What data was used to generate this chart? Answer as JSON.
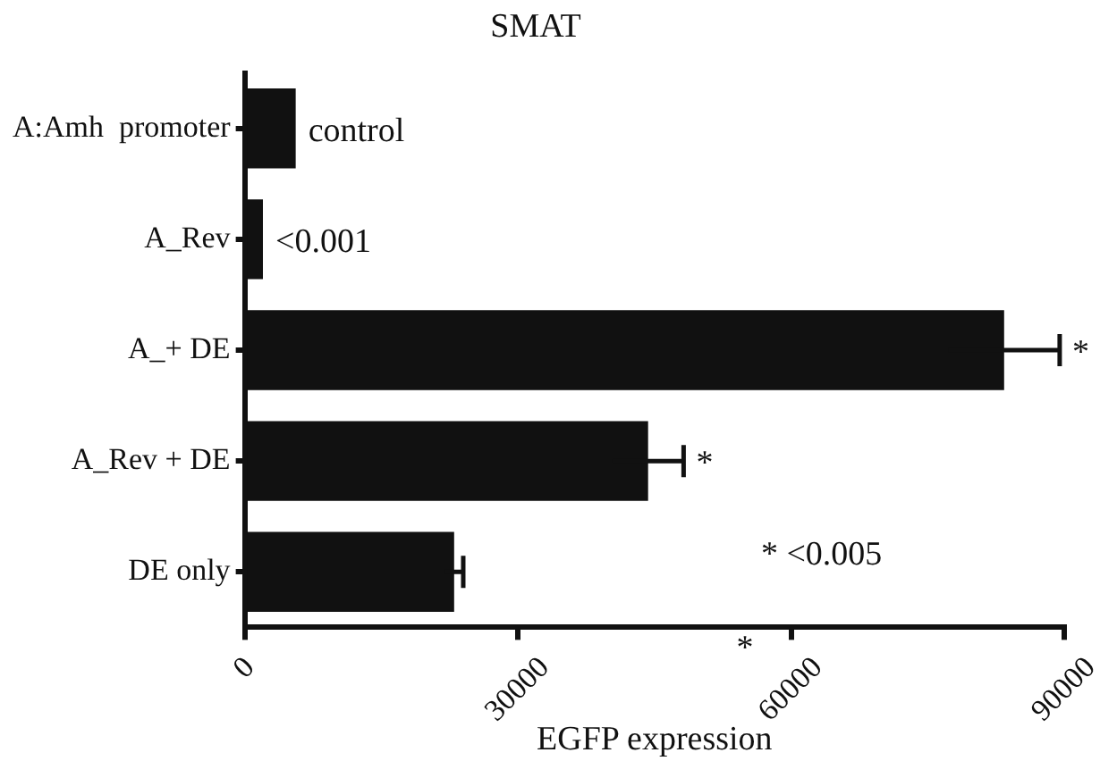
{
  "chart_data": {
    "type": "bar",
    "orientation": "horizontal",
    "title": "SMAT",
    "xlabel": "EGFP expression",
    "categories": [
      "A:Amh  promoter",
      "A_Rev",
      "A_+ DE",
      "A_Rev + DE",
      "DE only"
    ],
    "values": [
      5600,
      2000,
      83400,
      44300,
      23000
    ],
    "errors": [
      null,
      null,
      6100,
      3900,
      1000
    ],
    "color": "#111111",
    "xlim": [
      0,
      90000
    ],
    "xticks": [
      0,
      30000,
      60000,
      90000
    ],
    "grid": false,
    "legend": false,
    "annotations": [
      {
        "text": "control",
        "x": 5600,
        "y": "A:Amh  promoter"
      },
      {
        "text": "<0.001",
        "x": 2000,
        "y": "A_Rev"
      },
      {
        "text": "*",
        "x": 89500,
        "y": "A_+ DE"
      },
      {
        "text": "*",
        "x": 48200,
        "y": "A_Rev + DE"
      },
      "* <0.005",
      "*"
    ]
  }
}
